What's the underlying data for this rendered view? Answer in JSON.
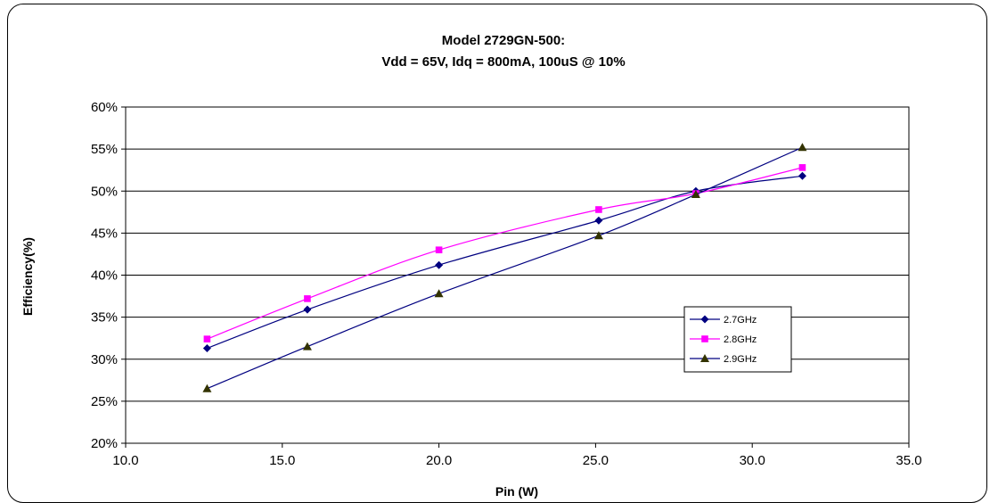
{
  "chart_data": {
    "type": "line",
    "title": "Model 2729GN-500:",
    "subtitle": "Vdd = 65V, Idq = 800mA, 100uS @ 10%",
    "xlabel": "Pin (W)",
    "ylabel": "Efficiency(%)",
    "xlim": [
      10.0,
      35.0
    ],
    "ylim": [
      0.2,
      0.6
    ],
    "x_ticks": [
      "10.0",
      "15.0",
      "20.0",
      "25.0",
      "30.0",
      "35.0"
    ],
    "y_ticks": [
      "20%",
      "25%",
      "30%",
      "35%",
      "40%",
      "45%",
      "50%",
      "55%",
      "60%"
    ],
    "grid": "horizontal",
    "legend_position": "right",
    "series": [
      {
        "name": "2.7GHz",
        "color": "#000080",
        "marker": "diamond",
        "x": [
          12.6,
          15.8,
          20.0,
          25.1,
          28.2,
          31.6
        ],
        "y": [
          0.313,
          0.359,
          0.412,
          0.465,
          0.5,
          0.518
        ]
      },
      {
        "name": "2.8GHz",
        "color": "#FF00FF",
        "marker": "square",
        "x": [
          12.6,
          15.8,
          20.0,
          25.1,
          28.2,
          31.6
        ],
        "y": [
          0.324,
          0.372,
          0.43,
          0.478,
          0.497,
          0.528
        ]
      },
      {
        "name": "2.9GHz",
        "color": "#000080",
        "marker": "triangle",
        "marker_color": "#333300",
        "x": [
          12.6,
          15.8,
          20.0,
          25.1,
          28.2,
          31.6
        ],
        "y": [
          0.265,
          0.315,
          0.378,
          0.447,
          0.496,
          0.552
        ]
      }
    ]
  }
}
